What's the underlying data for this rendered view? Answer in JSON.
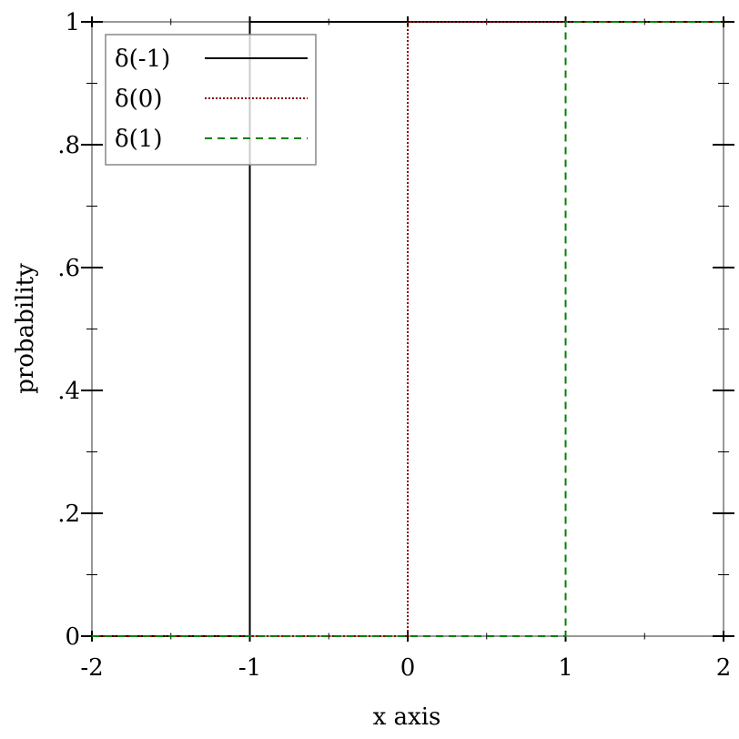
{
  "chart_data": {
    "type": "line",
    "title": "",
    "xlabel": "x axis",
    "ylabel": "probability",
    "xlim": [
      -2,
      2
    ],
    "ylim": [
      0,
      1
    ],
    "x_ticks": [
      -2,
      -1,
      0,
      1,
      2
    ],
    "x_tick_labels": [
      "-2",
      "-1",
      "0",
      "1",
      "2"
    ],
    "y_ticks": [
      0,
      0.2,
      0.4,
      0.6,
      0.8,
      1
    ],
    "y_tick_labels": [
      "0",
      ".2",
      ".4",
      ".6",
      ".8",
      "1"
    ],
    "grid": false,
    "legend_position": "top-left",
    "series": [
      {
        "name": "δ(-1)",
        "color": "#000000",
        "style": "solid",
        "x": [
          -2,
          -1,
          -1,
          2
        ],
        "y": [
          0,
          0,
          1,
          1
        ]
      },
      {
        "name": "δ(0)",
        "color": "#8b0000",
        "style": "dotted",
        "x": [
          -2,
          0,
          0,
          2
        ],
        "y": [
          0,
          0,
          1,
          1
        ]
      },
      {
        "name": "δ(1)",
        "color": "#008000",
        "style": "dashed",
        "x": [
          -2,
          1,
          1,
          2
        ],
        "y": [
          0,
          0,
          1,
          1
        ]
      }
    ]
  }
}
